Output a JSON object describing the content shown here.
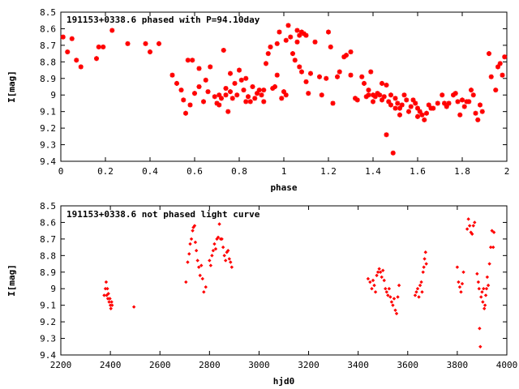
{
  "chart_data": [
    {
      "type": "scatter",
      "title": "191153+0338.6 phased with P=94.10day",
      "xlabel": "phase",
      "ylabel": "I[mag]",
      "xlim": [
        0,
        2
      ],
      "ylim": [
        8.5,
        9.4
      ],
      "y_inverted": true,
      "xticks": [
        "0",
        "0.2",
        "0.4",
        "0.6",
        "0.8",
        "1",
        "1.2",
        "1.4",
        "1.6",
        "1.8",
        "2"
      ],
      "yticks": [
        "8.5",
        "8.6",
        "8.7",
        "8.8",
        "8.9",
        "9",
        "9.1",
        "9.2",
        "9.3",
        "9.4"
      ],
      "marker_color": "#ff0000",
      "points": [
        [
          0.01,
          8.65
        ],
        [
          0.03,
          8.74
        ],
        [
          0.05,
          8.66
        ],
        [
          0.07,
          8.79
        ],
        [
          0.09,
          8.83
        ],
        [
          0.16,
          8.78
        ],
        [
          0.17,
          8.71
        ],
        [
          0.19,
          8.71
        ],
        [
          0.23,
          8.61
        ],
        [
          0.3,
          8.69
        ],
        [
          0.38,
          8.69
        ],
        [
          0.4,
          8.74
        ],
        [
          0.44,
          8.69
        ],
        [
          0.5,
          8.88
        ],
        [
          0.52,
          8.93
        ],
        [
          0.54,
          8.97
        ],
        [
          0.55,
          9.03
        ],
        [
          0.56,
          9.11
        ],
        [
          0.57,
          8.79
        ],
        [
          0.58,
          9.06
        ],
        [
          0.59,
          8.79
        ],
        [
          0.6,
          8.99
        ],
        [
          0.62,
          8.95
        ],
        [
          0.62,
          8.84
        ],
        [
          0.64,
          9.04
        ],
        [
          0.65,
          8.91
        ],
        [
          0.66,
          8.98
        ],
        [
          0.67,
          8.83
        ],
        [
          0.69,
          9.01
        ],
        [
          0.7,
          9.05
        ],
        [
          0.71,
          9.0
        ],
        [
          0.71,
          9.06
        ],
        [
          0.72,
          9.02
        ],
        [
          0.73,
          8.73
        ],
        [
          0.74,
          9.0
        ],
        [
          0.74,
          8.96
        ],
        [
          0.75,
          9.1
        ],
        [
          0.76,
          8.87
        ],
        [
          0.76,
          8.98
        ],
        [
          0.77,
          9.02
        ],
        [
          0.78,
          8.93
        ],
        [
          0.79,
          9.0
        ],
        [
          0.8,
          8.85
        ],
        [
          0.81,
          8.91
        ],
        [
          0.82,
          8.97
        ],
        [
          0.83,
          9.04
        ],
        [
          0.83,
          8.9
        ],
        [
          0.84,
          9.01
        ],
        [
          0.85,
          9.04
        ],
        [
          0.86,
          8.95
        ],
        [
          0.87,
          9.02
        ],
        [
          0.88,
          8.99
        ],
        [
          0.89,
          8.97
        ],
        [
          0.9,
          9.0
        ],
        [
          0.91,
          8.97
        ],
        [
          0.91,
          9.04
        ],
        [
          0.92,
          8.81
        ],
        [
          0.93,
          8.75
        ],
        [
          0.94,
          8.71
        ],
        [
          0.95,
          8.96
        ],
        [
          0.96,
          8.95
        ],
        [
          0.97,
          8.69
        ],
        [
          0.97,
          8.88
        ],
        [
          0.98,
          8.62
        ],
        [
          0.99,
          9.02
        ],
        [
          1.0,
          8.98
        ],
        [
          1.01,
          8.67
        ],
        [
          1.01,
          9.0
        ],
        [
          1.02,
          8.58
        ],
        [
          1.03,
          8.65
        ],
        [
          1.04,
          8.75
        ],
        [
          1.05,
          8.79
        ],
        [
          1.06,
          8.68
        ],
        [
          1.06,
          8.61
        ],
        [
          1.07,
          8.64
        ],
        [
          1.07,
          8.83
        ],
        [
          1.08,
          8.62
        ],
        [
          1.08,
          8.86
        ],
        [
          1.09,
          8.63
        ],
        [
          1.1,
          8.64
        ],
        [
          1.1,
          8.92
        ],
        [
          1.11,
          8.99
        ],
        [
          1.12,
          8.87
        ],
        [
          1.14,
          8.68
        ],
        [
          1.16,
          8.89
        ],
        [
          1.17,
          9.0
        ],
        [
          1.19,
          8.9
        ],
        [
          1.2,
          8.62
        ],
        [
          1.21,
          8.71
        ],
        [
          1.22,
          9.05
        ],
        [
          1.24,
          8.89
        ],
        [
          1.25,
          8.86
        ],
        [
          1.27,
          8.77
        ],
        [
          1.28,
          8.76
        ],
        [
          1.3,
          8.74
        ],
        [
          1.3,
          8.88
        ],
        [
          1.32,
          9.02
        ],
        [
          1.33,
          9.03
        ],
        [
          1.35,
          8.89
        ],
        [
          1.36,
          8.93
        ],
        [
          1.37,
          9.01
        ],
        [
          1.38,
          8.97
        ],
        [
          1.38,
          9.0
        ],
        [
          1.39,
          8.86
        ],
        [
          1.4,
          9.0
        ],
        [
          1.4,
          9.04
        ],
        [
          1.41,
          9.01
        ],
        [
          1.42,
          8.99
        ],
        [
          1.43,
          9.0
        ],
        [
          1.44,
          8.93
        ],
        [
          1.44,
          9.03
        ],
        [
          1.45,
          9.01
        ],
        [
          1.46,
          9.24
        ],
        [
          1.46,
          8.94
        ],
        [
          1.47,
          9.04
        ],
        [
          1.48,
          9.0
        ],
        [
          1.48,
          9.06
        ],
        [
          1.49,
          9.35
        ],
        [
          1.5,
          9.08
        ],
        [
          1.5,
          9.02
        ],
        [
          1.51,
          9.05
        ],
        [
          1.52,
          9.08
        ],
        [
          1.52,
          9.12
        ],
        [
          1.53,
          9.06
        ],
        [
          1.54,
          9.0
        ],
        [
          1.55,
          9.03
        ],
        [
          1.56,
          9.1
        ],
        [
          1.57,
          9.07
        ],
        [
          1.58,
          9.03
        ],
        [
          1.59,
          9.05
        ],
        [
          1.6,
          9.08
        ],
        [
          1.6,
          9.13
        ],
        [
          1.61,
          9.1
        ],
        [
          1.62,
          9.12
        ],
        [
          1.63,
          9.15
        ],
        [
          1.64,
          9.11
        ],
        [
          1.65,
          9.06
        ],
        [
          1.66,
          9.08
        ],
        [
          1.67,
          9.08
        ],
        [
          1.69,
          9.05
        ],
        [
          1.71,
          9.0
        ],
        [
          1.72,
          9.05
        ],
        [
          1.73,
          9.07
        ],
        [
          1.74,
          9.05
        ],
        [
          1.76,
          9.0
        ],
        [
          1.77,
          8.99
        ],
        [
          1.78,
          9.04
        ],
        [
          1.79,
          9.12
        ],
        [
          1.8,
          9.03
        ],
        [
          1.81,
          9.07
        ],
        [
          1.82,
          9.04
        ],
        [
          1.83,
          9.04
        ],
        [
          1.84,
          8.97
        ],
        [
          1.85,
          9.0
        ],
        [
          1.86,
          9.11
        ],
        [
          1.87,
          9.15
        ],
        [
          1.88,
          9.06
        ],
        [
          1.89,
          9.1
        ],
        [
          1.92,
          8.75
        ],
        [
          1.93,
          8.89
        ],
        [
          1.95,
          8.97
        ],
        [
          1.96,
          8.83
        ],
        [
          1.97,
          8.81
        ],
        [
          1.98,
          8.88
        ],
        [
          1.99,
          8.77
        ]
      ]
    },
    {
      "type": "scatter",
      "title": "191153+0338.6 not phased light curve",
      "xlabel": "hjd0",
      "ylabel": "I[mag]",
      "xlim": [
        2200,
        4000
      ],
      "ylim": [
        8.5,
        9.4
      ],
      "y_inverted": true,
      "xticks": [
        "2200",
        "2400",
        "2600",
        "2800",
        "3000",
        "3200",
        "3400",
        "3600",
        "3800",
        "4000"
      ],
      "yticks": [
        "8.5",
        "8.6",
        "8.7",
        "8.8",
        "8.9",
        "9",
        "9.1",
        "9.2",
        "9.3",
        "9.4"
      ],
      "marker_color": "#ff0000",
      "points": [
        [
          2375,
          9.04
        ],
        [
          2380,
          9.0
        ],
        [
          2383,
          8.96
        ],
        [
          2385,
          9.04
        ],
        [
          2388,
          9.0
        ],
        [
          2390,
          9.06
        ],
        [
          2392,
          9.03
        ],
        [
          2395,
          9.08
        ],
        [
          2398,
          9.06
        ],
        [
          2400,
          9.1
        ],
        [
          2402,
          9.12
        ],
        [
          2405,
          9.08
        ],
        [
          2407,
          9.1
        ],
        [
          2495,
          9.11
        ],
        [
          2705,
          8.96
        ],
        [
          2712,
          8.84
        ],
        [
          2718,
          8.79
        ],
        [
          2722,
          8.73
        ],
        [
          2727,
          8.7
        ],
        [
          2732,
          8.65
        ],
        [
          2735,
          8.63
        ],
        [
          2740,
          8.62
        ],
        [
          2743,
          8.72
        ],
        [
          2747,
          8.77
        ],
        [
          2752,
          8.83
        ],
        [
          2757,
          8.87
        ],
        [
          2762,
          8.92
        ],
        [
          2767,
          8.86
        ],
        [
          2772,
          8.94
        ],
        [
          2777,
          9.02
        ],
        [
          2785,
          8.99
        ],
        [
          2800,
          8.83
        ],
        [
          2805,
          8.86
        ],
        [
          2810,
          8.8
        ],
        [
          2815,
          8.77
        ],
        [
          2820,
          8.73
        ],
        [
          2825,
          8.76
        ],
        [
          2830,
          8.7
        ],
        [
          2835,
          8.69
        ],
        [
          2840,
          8.61
        ],
        [
          2845,
          8.7
        ],
        [
          2850,
          8.7
        ],
        [
          2855,
          8.75
        ],
        [
          2860,
          8.8
        ],
        [
          2865,
          8.83
        ],
        [
          2870,
          8.78
        ],
        [
          2875,
          8.77
        ],
        [
          2880,
          8.82
        ],
        [
          2885,
          8.84
        ],
        [
          2890,
          8.87
        ],
        [
          3440,
          8.94
        ],
        [
          3448,
          8.96
        ],
        [
          3455,
          9.0
        ],
        [
          3460,
          8.95
        ],
        [
          3465,
          8.98
        ],
        [
          3470,
          9.02
        ],
        [
          3475,
          8.92
        ],
        [
          3480,
          8.9
        ],
        [
          3485,
          8.88
        ],
        [
          3490,
          8.9
        ],
        [
          3495,
          8.93
        ],
        [
          3500,
          8.89
        ],
        [
          3505,
          8.95
        ],
        [
          3510,
          9.0
        ],
        [
          3515,
          9.02
        ],
        [
          3520,
          9.04
        ],
        [
          3525,
          9.0
        ],
        [
          3530,
          9.05
        ],
        [
          3535,
          9.08
        ],
        [
          3540,
          9.1
        ],
        [
          3545,
          9.06
        ],
        [
          3550,
          9.13
        ],
        [
          3555,
          9.15
        ],
        [
          3560,
          9.05
        ],
        [
          3565,
          8.98
        ],
        [
          3630,
          9.04
        ],
        [
          3635,
          9.02
        ],
        [
          3640,
          9.0
        ],
        [
          3645,
          9.05
        ],
        [
          3650,
          8.98
        ],
        [
          3655,
          8.96
        ],
        [
          3658,
          9.02
        ],
        [
          3662,
          8.9
        ],
        [
          3665,
          8.87
        ],
        [
          3668,
          8.82
        ],
        [
          3672,
          8.78
        ],
        [
          3675,
          8.85
        ],
        [
          3800,
          8.87
        ],
        [
          3805,
          8.96
        ],
        [
          3810,
          8.99
        ],
        [
          3815,
          9.02
        ],
        [
          3820,
          8.97
        ],
        [
          3825,
          8.9
        ],
        [
          3840,
          8.64
        ],
        [
          3845,
          8.58
        ],
        [
          3850,
          8.62
        ],
        [
          3855,
          8.66
        ],
        [
          3860,
          8.67
        ],
        [
          3865,
          8.62
        ],
        [
          3870,
          8.6
        ],
        [
          3880,
          8.91
        ],
        [
          3885,
          8.96
        ],
        [
          3888,
          9.0
        ],
        [
          3890,
          9.24
        ],
        [
          3893,
          9.35
        ],
        [
          3896,
          9.05
        ],
        [
          3900,
          9.02
        ],
        [
          3903,
          9.08
        ],
        [
          3906,
          9.0
        ],
        [
          3909,
          9.12
        ],
        [
          3912,
          9.1
        ],
        [
          3915,
          9.04
        ],
        [
          3918,
          9.0
        ],
        [
          3921,
          8.93
        ],
        [
          3925,
          8.98
        ],
        [
          3930,
          8.85
        ],
        [
          3935,
          8.75
        ],
        [
          3940,
          8.65
        ],
        [
          3945,
          8.75
        ],
        [
          3948,
          8.66
        ]
      ]
    }
  ]
}
